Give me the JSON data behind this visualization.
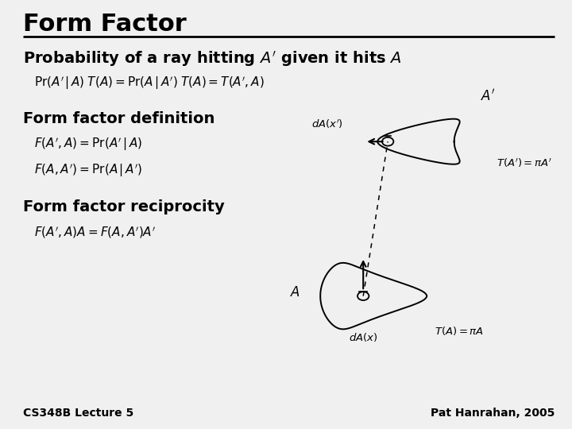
{
  "bg_color": "#f0f0f0",
  "title": "Form Factor",
  "title_fontsize": 22,
  "subtitle": "Probability of a ray hitting $A'$ given it hits $A$",
  "subtitle_fontsize": 14,
  "eq1": "$\\mathrm{Pr}(A'\\,|\\,A)\\;T(A) = \\mathrm{Pr}(A\\,|\\,A')\\;T(A) = T(A', A)$",
  "eq1_fontsize": 11,
  "section1": "Form factor definition",
  "section1_fontsize": 14,
  "eq2a": "$F(A', A) = \\mathrm{Pr}(A'\\,|\\,A)$",
  "eq2b": "$F(A, A') = \\mathrm{Pr}(A\\,|\\,A')$",
  "eq2_fontsize": 11,
  "section2": "Form factor reciprocity",
  "section2_fontsize": 14,
  "eq3": "$F(A', A)A = F(A, A')A'$",
  "eq3_fontsize": 11,
  "footer_left": "CS348B Lecture 5",
  "footer_right": "Pat Hanrahan, 2005",
  "footer_fontsize": 10
}
